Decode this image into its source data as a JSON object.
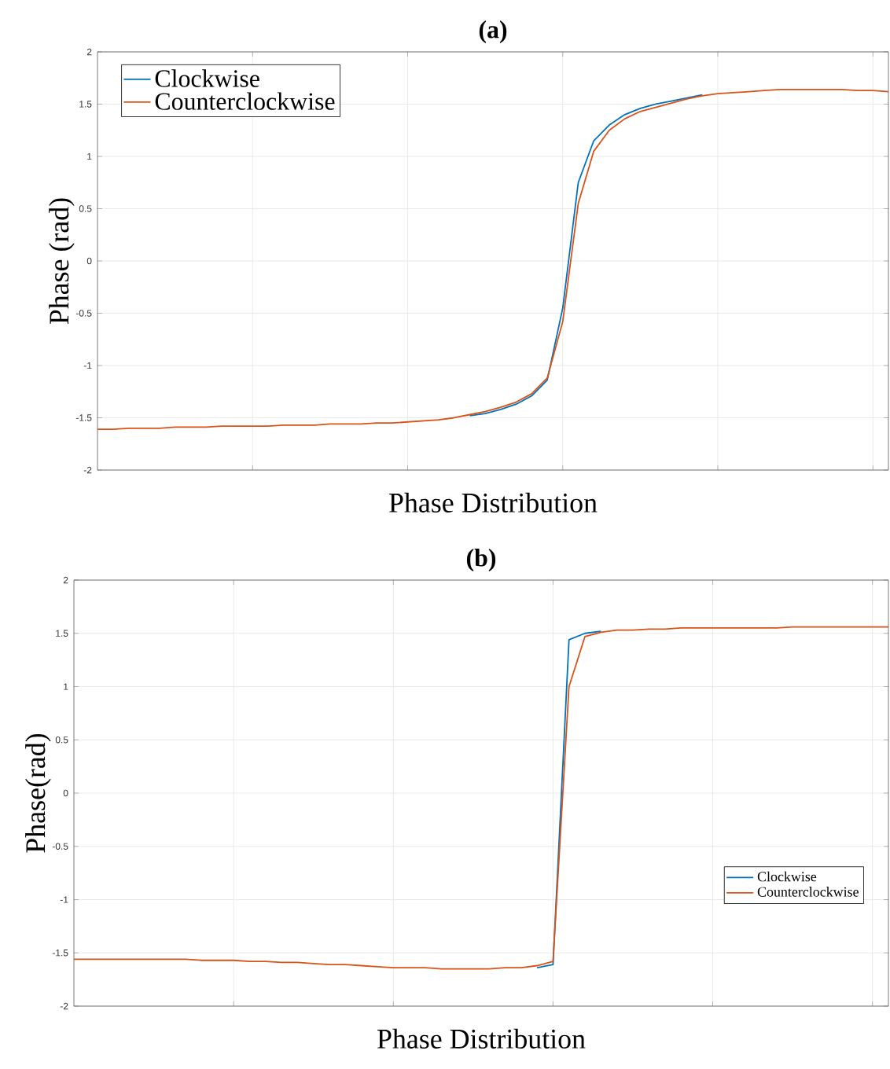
{
  "chart_data": [
    {
      "type": "line",
      "title": "(a)",
      "xlabel": "Phase Distribution",
      "ylabel": "Phase (rad)",
      "categories": [
        null,
        null,
        null,
        null,
        null,
        null,
        null,
        null,
        null,
        null,
        null,
        null,
        null,
        null,
        null,
        null,
        null,
        null,
        null,
        null,
        null,
        null,
        null,
        null,
        null,
        null,
        null,
        null,
        null,
        null,
        null,
        null,
        null,
        null,
        null,
        null,
        null,
        null,
        null,
        null,
        null,
        null,
        null,
        null,
        null,
        null,
        null,
        null,
        null,
        null,
        null,
        null
      ],
      "ylim": [
        -2,
        2
      ],
      "yticks": [
        -2,
        -1.5,
        -1,
        -0.5,
        0,
        0.5,
        1,
        1.5,
        2
      ],
      "grid": true,
      "legend": "top left",
      "series": [
        {
          "name": "Clockwise",
          "color": "#0072bd",
          "values": [
            null,
            null,
            null,
            null,
            null,
            null,
            null,
            null,
            null,
            null,
            null,
            null,
            null,
            null,
            null,
            null,
            null,
            null,
            null,
            null,
            null,
            null,
            null,
            null,
            -1.48,
            -1.46,
            -1.42,
            -1.37,
            -1.29,
            -1.14,
            -0.45,
            0.75,
            1.15,
            1.3,
            1.4,
            1.46,
            1.5,
            1.53,
            1.56,
            1.59,
            null,
            null,
            null,
            null,
            null,
            null,
            null,
            null,
            null,
            null,
            null,
            null
          ]
        },
        {
          "name": "Counterclockwise",
          "color": "#d95319",
          "values": [
            -1.61,
            -1.61,
            -1.6,
            -1.6,
            -1.6,
            -1.59,
            -1.59,
            -1.59,
            -1.58,
            -1.58,
            -1.58,
            -1.58,
            -1.57,
            -1.57,
            -1.57,
            -1.56,
            -1.56,
            -1.56,
            -1.55,
            -1.55,
            -1.54,
            -1.53,
            -1.52,
            -1.5,
            -1.47,
            -1.44,
            -1.4,
            -1.35,
            -1.27,
            -1.12,
            -0.58,
            0.55,
            1.05,
            1.25,
            1.36,
            1.43,
            1.47,
            1.51,
            1.55,
            1.58,
            1.6,
            1.61,
            1.62,
            1.63,
            1.64,
            1.64,
            1.64,
            1.64,
            1.64,
            1.63,
            1.63,
            1.62
          ]
        }
      ]
    },
    {
      "type": "line",
      "title": "(b)",
      "xlabel": "Phase Distribution",
      "ylabel": "Phase(rad)",
      "categories": [
        null,
        null,
        null,
        null,
        null,
        null,
        null,
        null,
        null,
        null,
        null,
        null,
        null,
        null,
        null,
        null,
        null,
        null,
        null,
        null,
        null,
        null,
        null,
        null,
        null,
        null,
        null,
        null,
        null,
        null,
        null,
        null,
        null,
        null,
        null,
        null,
        null,
        null,
        null,
        null,
        null,
        null,
        null,
        null,
        null,
        null,
        null,
        null,
        null,
        null,
        null,
        null
      ],
      "ylim": [
        -2,
        2
      ],
      "yticks": [
        -2,
        -1.5,
        -1,
        -0.5,
        0,
        0.5,
        1,
        1.5,
        2
      ],
      "grid": true,
      "legend": "bottom right",
      "series": [
        {
          "name": "Clockwise",
          "color": "#0072bd",
          "values": [
            null,
            null,
            null,
            null,
            null,
            null,
            null,
            null,
            null,
            null,
            null,
            null,
            null,
            null,
            null,
            null,
            null,
            null,
            null,
            null,
            null,
            null,
            null,
            null,
            null,
            null,
            null,
            null,
            null,
            -1.64,
            -1.61,
            1.44,
            1.5,
            1.52,
            null,
            null,
            null,
            null,
            null,
            null,
            null,
            null,
            null,
            null,
            null,
            null,
            null,
            null,
            null,
            null,
            null,
            null
          ]
        },
        {
          "name": "Counterclockwise",
          "color": "#d95319",
          "values": [
            -1.56,
            -1.56,
            -1.56,
            -1.56,
            -1.56,
            -1.56,
            -1.56,
            -1.56,
            -1.57,
            -1.57,
            -1.57,
            -1.58,
            -1.58,
            -1.59,
            -1.59,
            -1.6,
            -1.61,
            -1.61,
            -1.62,
            -1.63,
            -1.64,
            -1.64,
            -1.64,
            -1.65,
            -1.65,
            -1.65,
            -1.65,
            -1.64,
            -1.64,
            -1.62,
            -1.58,
            1.0,
            1.47,
            1.51,
            1.53,
            1.53,
            1.54,
            1.54,
            1.55,
            1.55,
            1.55,
            1.55,
            1.55,
            1.55,
            1.55,
            1.56,
            1.56,
            1.56,
            1.56,
            1.56,
            1.56,
            1.56
          ]
        }
      ]
    }
  ]
}
